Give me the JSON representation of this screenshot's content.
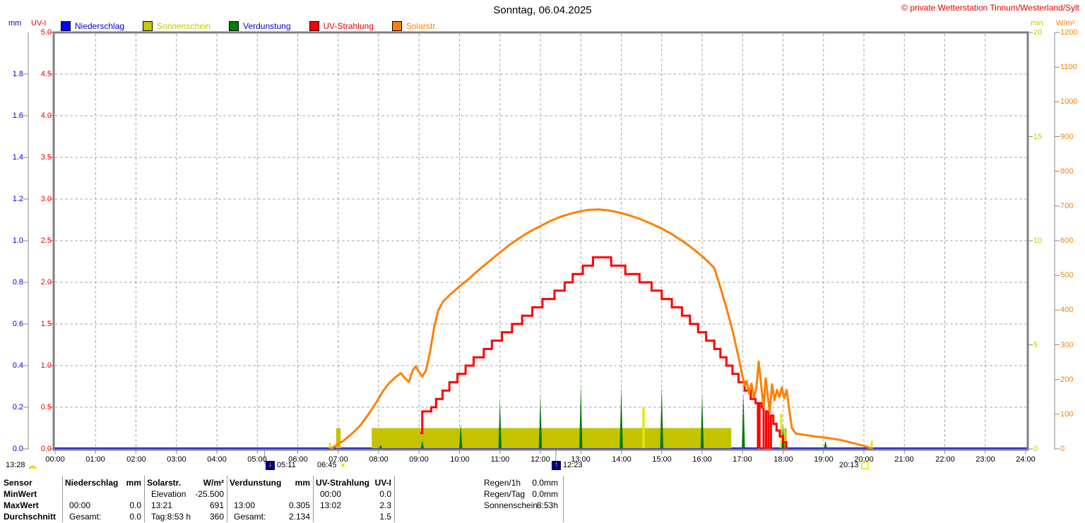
{
  "header": {
    "title": "Sonntag, 06.04.2025",
    "copyright": "© private Wetterstation Tinnum/Westerland/Sylt"
  },
  "legend": {
    "items": [
      {
        "label": "Niederschlag",
        "box_color": "#0000ff",
        "label_color": "#0000dd"
      },
      {
        "label": "Sonnenschein",
        "box_color": "#c8c800",
        "label_color": "#c8c800"
      },
      {
        "label": "Verdunstung",
        "box_color": "#008000",
        "label_color": "#0000dd"
      },
      {
        "label": "UV-Strahlung",
        "box_color": "#ff0000",
        "label_color": "#ee0000"
      },
      {
        "label": "Solarstr.",
        "box_color": "#ff8000",
        "label_color": "#ff8000"
      }
    ]
  },
  "axis_units": {
    "mm": "mm",
    "uvi": "UV-I",
    "min": "min",
    "wm2": "W/m²"
  },
  "markers": [
    {
      "time": "13:28",
      "icon": "moon-cloud-icon"
    },
    {
      "time": "05:11",
      "icon": "twilight-down-icon",
      "hour": 5.183
    },
    {
      "time": "06:45",
      "icon": "sunrise-icon",
      "hour": 6.75
    },
    {
      "time": "12:23",
      "icon": "twilight-up-icon",
      "hour": 12.383
    },
    {
      "time": "20:13",
      "icon": "sunset-icon",
      "hour": 20.217
    }
  ],
  "chart_data": {
    "type": "line",
    "title": "Sonntag, 06.04.2025",
    "x_axis": {
      "range": [
        0,
        24
      ],
      "tick_interval_hours": 1,
      "tick_labels": [
        "00:00",
        "01:00",
        "02:00",
        "03:00",
        "04:00",
        "05:00",
        "06:00",
        "07:00",
        "08:00",
        "09:00",
        "10:00",
        "11:00",
        "12:00",
        "13:00",
        "14:00",
        "15:00",
        "16:00",
        "17:00",
        "18:00",
        "19:00",
        "20:00",
        "21:00",
        "22:00",
        "23:00",
        "24:00"
      ],
      "marker_tick_hours": [
        5.183,
        12.383
      ]
    },
    "y_axes": [
      {
        "id": "mm",
        "unit": "mm",
        "color": "#0000dd",
        "range": [
          0,
          2
        ],
        "step": 0.2,
        "label_max": 1.8,
        "decimals": 1
      },
      {
        "id": "uvi",
        "unit": "UV-I",
        "color": "#ee0000",
        "range": [
          0,
          5
        ],
        "step": 0.5,
        "label_max": 5,
        "decimals": 1
      },
      {
        "id": "min",
        "unit": "min",
        "color": "#c8c800",
        "range": [
          0,
          20
        ],
        "step": 5,
        "label_max": 20,
        "decimals": 0
      },
      {
        "id": "wm2",
        "unit": "W/m²",
        "color": "#ff8000",
        "range": [
          0,
          1200
        ],
        "step": 100,
        "label_max": 1200,
        "decimals": 0
      }
    ],
    "grid": {
      "vertical_every_hour": 1,
      "horizontal_every_uvi": 0.5,
      "style": "dashed"
    },
    "series": [
      {
        "name": "Niederschlag",
        "axis": "mm",
        "color": "#0000ff",
        "type": "line",
        "points": [
          [
            0,
            0
          ],
          [
            24,
            0
          ]
        ]
      },
      {
        "name": "Sonnenschein",
        "axis": "mm",
        "color": "#c3c300",
        "type": "bar",
        "bars": [
          {
            "from": 6.77,
            "to": 6.82,
            "h": 0.03,
            "color": "#e6e600"
          },
          {
            "from": 6.95,
            "to": 7.06,
            "h": 0.1,
            "color": "#c3c300"
          },
          {
            "from": 7.83,
            "to": 16.72,
            "h": 0.1,
            "color": "#c3c300"
          },
          {
            "from": 14.52,
            "to": 14.58,
            "h": 0.2,
            "color": "#e6e600"
          },
          {
            "from": 17.93,
            "to": 17.98,
            "h": 0.17,
            "color": "#e6e600"
          },
          {
            "from": 18.03,
            "to": 18.09,
            "h": 0.1,
            "color": "#c3c300"
          },
          {
            "from": 20.17,
            "to": 20.22,
            "h": 0.04,
            "color": "#e6e600"
          }
        ]
      },
      {
        "name": "Verdunstung",
        "axis": "mm",
        "color": "#007700",
        "type": "spike",
        "spikes": [
          [
            8.05,
            0.02
          ],
          [
            9.08,
            0.04
          ],
          [
            10.03,
            0.12
          ],
          [
            11.0,
            0.24
          ],
          [
            12.0,
            0.26
          ],
          [
            13.0,
            0.305
          ],
          [
            14.0,
            0.3
          ],
          [
            15.0,
            0.3
          ],
          [
            16.0,
            0.27
          ],
          [
            17.02,
            0.27
          ],
          [
            18.0,
            0.12
          ],
          [
            19.05,
            0.04
          ]
        ]
      },
      {
        "name": "UV-Strahlung",
        "axis": "uvi",
        "color": "#ff0000",
        "type": "step",
        "end_hour": 18.1,
        "points": [
          [
            9.03,
            0.19
          ],
          [
            9.08,
            0.45
          ],
          [
            9.3,
            0.5
          ],
          [
            9.42,
            0.6
          ],
          [
            9.58,
            0.7
          ],
          [
            9.75,
            0.8
          ],
          [
            9.95,
            0.9
          ],
          [
            10.15,
            1.0
          ],
          [
            10.35,
            1.1
          ],
          [
            10.6,
            1.2
          ],
          [
            10.8,
            1.3
          ],
          [
            11.05,
            1.4
          ],
          [
            11.3,
            1.5
          ],
          [
            11.55,
            1.6
          ],
          [
            11.8,
            1.7
          ],
          [
            12.05,
            1.8
          ],
          [
            12.35,
            1.9
          ],
          [
            12.6,
            2.0
          ],
          [
            12.8,
            2.1
          ],
          [
            13.05,
            2.2
          ],
          [
            13.3,
            2.3
          ],
          [
            13.75,
            2.2
          ],
          [
            14.1,
            2.1
          ],
          [
            14.45,
            2.0
          ],
          [
            14.75,
            1.9
          ],
          [
            15.0,
            1.8
          ],
          [
            15.25,
            1.7
          ],
          [
            15.5,
            1.6
          ],
          [
            15.7,
            1.5
          ],
          [
            15.9,
            1.4
          ],
          [
            16.1,
            1.3
          ],
          [
            16.3,
            1.2
          ],
          [
            16.45,
            1.1
          ],
          [
            16.6,
            1.0
          ],
          [
            16.75,
            0.9
          ],
          [
            16.9,
            0.8
          ],
          [
            17.05,
            0.7
          ],
          [
            17.2,
            0.6
          ],
          [
            17.32,
            0.55
          ],
          [
            17.38,
            0.0
          ],
          [
            17.42,
            0.55
          ],
          [
            17.48,
            0.5
          ],
          [
            17.52,
            0.0
          ],
          [
            17.58,
            0.45
          ],
          [
            17.64,
            0.0
          ],
          [
            17.7,
            0.4
          ],
          [
            17.76,
            0.3
          ],
          [
            17.84,
            0.22
          ],
          [
            17.92,
            0.15
          ],
          [
            18.0,
            0.08
          ],
          [
            18.08,
            0.0
          ]
        ]
      },
      {
        "name": "Solarstr.",
        "axis": "wm2",
        "color": "#ff8000",
        "type": "line",
        "points": [
          [
            6.8,
            0
          ],
          [
            6.95,
            10
          ],
          [
            7.15,
            25
          ],
          [
            7.35,
            45
          ],
          [
            7.55,
            68
          ],
          [
            7.75,
            100
          ],
          [
            7.95,
            135
          ],
          [
            8.1,
            165
          ],
          [
            8.25,
            188
          ],
          [
            8.4,
            205
          ],
          [
            8.55,
            218
          ],
          [
            8.65,
            204
          ],
          [
            8.75,
            193
          ],
          [
            8.85,
            228
          ],
          [
            8.92,
            238
          ],
          [
            9.0,
            222
          ],
          [
            9.08,
            208
          ],
          [
            9.17,
            226
          ],
          [
            9.27,
            278
          ],
          [
            9.37,
            348
          ],
          [
            9.47,
            398
          ],
          [
            9.6,
            426
          ],
          [
            9.8,
            448
          ],
          [
            10.0,
            468
          ],
          [
            10.25,
            492
          ],
          [
            10.5,
            518
          ],
          [
            10.75,
            542
          ],
          [
            11.0,
            566
          ],
          [
            11.25,
            589
          ],
          [
            11.5,
            609
          ],
          [
            11.75,
            627
          ],
          [
            12.0,
            642
          ],
          [
            12.25,
            657
          ],
          [
            12.5,
            669
          ],
          [
            12.75,
            678
          ],
          [
            13.0,
            685
          ],
          [
            13.2,
            689
          ],
          [
            13.45,
            690
          ],
          [
            13.7,
            687
          ],
          [
            13.95,
            681
          ],
          [
            14.2,
            673
          ],
          [
            14.45,
            663
          ],
          [
            14.7,
            651
          ],
          [
            15.0,
            635
          ],
          [
            15.25,
            619
          ],
          [
            15.5,
            600
          ],
          [
            15.75,
            579
          ],
          [
            16.0,
            555
          ],
          [
            16.15,
            539
          ],
          [
            16.3,
            521
          ],
          [
            16.45,
            466
          ],
          [
            16.6,
            406
          ],
          [
            16.75,
            342
          ],
          [
            16.9,
            265
          ],
          [
            17.0,
            208
          ],
          [
            17.05,
            182
          ],
          [
            17.1,
            196
          ],
          [
            17.16,
            160
          ],
          [
            17.22,
            188
          ],
          [
            17.28,
            148
          ],
          [
            17.34,
            176
          ],
          [
            17.4,
            252
          ],
          [
            17.46,
            183
          ],
          [
            17.52,
            120
          ],
          [
            17.57,
            204
          ],
          [
            17.62,
            156
          ],
          [
            17.67,
            106
          ],
          [
            17.73,
            186
          ],
          [
            17.79,
            140
          ],
          [
            17.85,
            170
          ],
          [
            17.91,
            150
          ],
          [
            17.97,
            177
          ],
          [
            18.03,
            146
          ],
          [
            18.09,
            170
          ],
          [
            18.15,
            115
          ],
          [
            18.22,
            60
          ],
          [
            18.32,
            44
          ],
          [
            18.55,
            40
          ],
          [
            18.85,
            35
          ],
          [
            19.15,
            31
          ],
          [
            19.45,
            25
          ],
          [
            19.75,
            16
          ],
          [
            20.05,
            7
          ],
          [
            20.22,
            0
          ]
        ]
      }
    ]
  },
  "table": {
    "row_labels": [
      "Sensor",
      "MinWert",
      "MaxWert",
      "Durchschnitt"
    ],
    "columns": [
      {
        "name": "Niederschlag",
        "unit": "mm",
        "minwert": [
          "",
          ""
        ],
        "maxwert": [
          "00:00",
          "0.0"
        ],
        "durchschnitt": [
          "Gesamt:",
          "0.0"
        ]
      },
      {
        "name": "Solarstr.",
        "unit": "W/m²",
        "minwert": [
          "Elevation",
          "-25.500"
        ],
        "maxwert": [
          "13:21",
          "691"
        ],
        "durchschnitt": [
          "Tag:8:53 h",
          "360"
        ]
      },
      {
        "name": "Verdunstung",
        "unit": "mm",
        "minwert": [
          "",
          ""
        ],
        "maxwert": [
          "13:00",
          "0.305"
        ],
        "durchschnitt": [
          "Gesamt:",
          "2.134"
        ]
      },
      {
        "name": "UV-Strahlung",
        "unit": "UV-I",
        "minwert": [
          "00:00",
          "0.0"
        ],
        "maxwert": [
          "13:02",
          "2.3"
        ],
        "durchschnitt": [
          "",
          "1.5"
        ]
      }
    ],
    "info": [
      {
        "label": "Regen/1h",
        "value": "0.0mm"
      },
      {
        "label": "Regen/Tag",
        "value": "0.0mm"
      },
      {
        "label": "Sonnenschein",
        "value": "8:53h"
      }
    ]
  }
}
